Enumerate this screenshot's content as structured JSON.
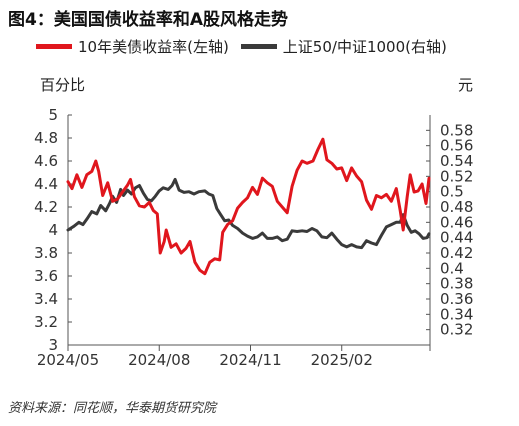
{
  "title": "图4：美国国债收益率和A股风格走势",
  "source": "资料来源：同花顺，华泰期货研究院",
  "colors": {
    "series1": "#e0161d",
    "series2": "#3a3a3a",
    "axis": "#555555",
    "text": "#333333"
  },
  "chart_data": {
    "type": "line",
    "legend_position": "top",
    "grid": false,
    "x_axis": {
      "type": "date",
      "range": [
        "2024-05-01",
        "2025-05-01"
      ],
      "tick_labels": [
        "2024/05",
        "2024/08",
        "2024/11",
        "2025/02"
      ]
    },
    "y_left": {
      "label": "百分比",
      "range": [
        3.0,
        5.0
      ],
      "tick_labels": [
        "3",
        "3.2",
        "3.4",
        "3.6",
        "3.8",
        "4",
        "4.2",
        "4.4",
        "4.6",
        "4.8",
        "5"
      ]
    },
    "y_right": {
      "label": "元",
      "range": [
        0.3,
        0.6
      ],
      "tick_labels": [
        "0.32",
        "0.34",
        "0.36",
        "0.38",
        "0.4",
        "0.42",
        "0.44",
        "0.46",
        "0.48",
        "0.5",
        "0.52",
        "0.54",
        "0.56",
        "0.58"
      ]
    },
    "series": [
      {
        "name": "10年美债收益率(左轴)",
        "axis": "left",
        "points": [
          [
            "2024-05-01",
            4.42
          ],
          [
            "2024-05-05",
            4.36
          ],
          [
            "2024-05-10",
            4.48
          ],
          [
            "2024-05-15",
            4.37
          ],
          [
            "2024-05-20",
            4.48
          ],
          [
            "2024-05-25",
            4.51
          ],
          [
            "2024-05-29",
            4.6
          ],
          [
            "2024-06-01",
            4.51
          ],
          [
            "2024-06-05",
            4.3
          ],
          [
            "2024-06-10",
            4.41
          ],
          [
            "2024-06-15",
            4.25
          ],
          [
            "2024-06-20",
            4.27
          ],
          [
            "2024-06-25",
            4.33
          ],
          [
            "2024-06-30",
            4.39
          ],
          [
            "2024-07-03",
            4.44
          ],
          [
            "2024-07-07",
            4.29
          ],
          [
            "2024-07-12",
            4.21
          ],
          [
            "2024-07-17",
            4.2
          ],
          [
            "2024-07-22",
            4.24
          ],
          [
            "2024-07-26",
            4.17
          ],
          [
            "2024-07-30",
            4.14
          ],
          [
            "2024-08-02",
            3.8
          ],
          [
            "2024-08-06",
            3.9
          ],
          [
            "2024-08-08",
            4.0
          ],
          [
            "2024-08-13",
            3.85
          ],
          [
            "2024-08-18",
            3.88
          ],
          [
            "2024-08-23",
            3.8
          ],
          [
            "2024-08-28",
            3.84
          ],
          [
            "2024-09-01",
            3.9
          ],
          [
            "2024-09-06",
            3.72
          ],
          [
            "2024-09-11",
            3.65
          ],
          [
            "2024-09-16",
            3.62
          ],
          [
            "2024-09-21",
            3.72
          ],
          [
            "2024-09-26",
            3.75
          ],
          [
            "2024-10-01",
            3.74
          ],
          [
            "2024-10-04",
            3.98
          ],
          [
            "2024-10-09",
            4.05
          ],
          [
            "2024-10-14",
            4.08
          ],
          [
            "2024-10-19",
            4.19
          ],
          [
            "2024-10-24",
            4.24
          ],
          [
            "2024-10-29",
            4.28
          ],
          [
            "2024-11-03",
            4.37
          ],
          [
            "2024-11-08",
            4.31
          ],
          [
            "2024-11-13",
            4.45
          ],
          [
            "2024-11-18",
            4.41
          ],
          [
            "2024-11-23",
            4.38
          ],
          [
            "2024-11-28",
            4.25
          ],
          [
            "2024-12-03",
            4.2
          ],
          [
            "2024-12-08",
            4.15
          ],
          [
            "2024-12-13",
            4.38
          ],
          [
            "2024-12-18",
            4.52
          ],
          [
            "2024-12-23",
            4.6
          ],
          [
            "2024-12-28",
            4.58
          ],
          [
            "2025-01-03",
            4.6
          ],
          [
            "2025-01-08",
            4.7
          ],
          [
            "2025-01-13",
            4.79
          ],
          [
            "2025-01-17",
            4.61
          ],
          [
            "2025-01-22",
            4.58
          ],
          [
            "2025-01-27",
            4.53
          ],
          [
            "2025-02-01",
            4.54
          ],
          [
            "2025-02-06",
            4.43
          ],
          [
            "2025-02-11",
            4.54
          ],
          [
            "2025-02-16",
            4.47
          ],
          [
            "2025-02-21",
            4.42
          ],
          [
            "2025-02-26",
            4.26
          ],
          [
            "2025-03-03",
            4.18
          ],
          [
            "2025-03-08",
            4.3
          ],
          [
            "2025-03-13",
            4.28
          ],
          [
            "2025-03-18",
            4.31
          ],
          [
            "2025-03-23",
            4.25
          ],
          [
            "2025-03-28",
            4.36
          ],
          [
            "2025-04-01",
            4.17
          ],
          [
            "2025-04-04",
            4.0
          ],
          [
            "2025-04-08",
            4.29
          ],
          [
            "2025-04-11",
            4.48
          ],
          [
            "2025-04-15",
            4.33
          ],
          [
            "2025-04-19",
            4.34
          ],
          [
            "2025-04-23",
            4.4
          ],
          [
            "2025-04-27",
            4.23
          ],
          [
            "2025-04-30",
            4.45
          ]
        ]
      },
      {
        "name": "上证50/中证1000(右轴)",
        "axis": "right",
        "points": [
          [
            "2024-05-01",
            0.45
          ],
          [
            "2024-05-07",
            0.455
          ],
          [
            "2024-05-12",
            0.46
          ],
          [
            "2024-05-16",
            0.457
          ],
          [
            "2024-05-21",
            0.466
          ],
          [
            "2024-05-25",
            0.474
          ],
          [
            "2024-05-30",
            0.471
          ],
          [
            "2024-06-03",
            0.482
          ],
          [
            "2024-06-08",
            0.475
          ],
          [
            "2024-06-12",
            0.485
          ],
          [
            "2024-06-15",
            0.494
          ],
          [
            "2024-06-19",
            0.486
          ],
          [
            "2024-06-23",
            0.503
          ],
          [
            "2024-06-26",
            0.495
          ],
          [
            "2024-06-30",
            0.502
          ],
          [
            "2024-07-04",
            0.497
          ],
          [
            "2024-07-08",
            0.505
          ],
          [
            "2024-07-12",
            0.508
          ],
          [
            "2024-07-16",
            0.498
          ],
          [
            "2024-07-20",
            0.49
          ],
          [
            "2024-07-24",
            0.488
          ],
          [
            "2024-07-28",
            0.494
          ],
          [
            "2024-08-01",
            0.501
          ],
          [
            "2024-08-05",
            0.505
          ],
          [
            "2024-08-10",
            0.503
          ],
          [
            "2024-08-14",
            0.508
          ],
          [
            "2024-08-17",
            0.516
          ],
          [
            "2024-08-21",
            0.502
          ],
          [
            "2024-08-26",
            0.499
          ],
          [
            "2024-08-31",
            0.5
          ],
          [
            "2024-09-05",
            0.497
          ],
          [
            "2024-09-10",
            0.5
          ],
          [
            "2024-09-16",
            0.501
          ],
          [
            "2024-09-20",
            0.497
          ],
          [
            "2024-09-24",
            0.495
          ],
          [
            "2024-09-28",
            0.478
          ],
          [
            "2024-10-02",
            0.47
          ],
          [
            "2024-10-06",
            0.462
          ],
          [
            "2024-10-10",
            0.463
          ],
          [
            "2024-10-14",
            0.456
          ],
          [
            "2024-10-19",
            0.452
          ],
          [
            "2024-10-24",
            0.446
          ],
          [
            "2024-10-29",
            0.442
          ],
          [
            "2024-11-03",
            0.439
          ],
          [
            "2024-11-08",
            0.441
          ],
          [
            "2024-11-13",
            0.446
          ],
          [
            "2024-11-18",
            0.439
          ],
          [
            "2024-11-23",
            0.439
          ],
          [
            "2024-11-28",
            0.441
          ],
          [
            "2024-12-03",
            0.436
          ],
          [
            "2024-12-08",
            0.438
          ],
          [
            "2024-12-13",
            0.449
          ],
          [
            "2024-12-18",
            0.448
          ],
          [
            "2024-12-23",
            0.449
          ],
          [
            "2024-12-28",
            0.448
          ],
          [
            "2025-01-02",
            0.452
          ],
          [
            "2025-01-07",
            0.449
          ],
          [
            "2025-01-12",
            0.441
          ],
          [
            "2025-01-17",
            0.44
          ],
          [
            "2025-01-22",
            0.446
          ],
          [
            "2025-01-27",
            0.438
          ],
          [
            "2025-02-01",
            0.431
          ],
          [
            "2025-02-06",
            0.428
          ],
          [
            "2025-02-11",
            0.431
          ],
          [
            "2025-02-16",
            0.428
          ],
          [
            "2025-02-21",
            0.427
          ],
          [
            "2025-02-26",
            0.436
          ],
          [
            "2025-03-03",
            0.433
          ],
          [
            "2025-03-08",
            0.431
          ],
          [
            "2025-03-13",
            0.443
          ],
          [
            "2025-03-18",
            0.454
          ],
          [
            "2025-03-23",
            0.457
          ],
          [
            "2025-03-28",
            0.46
          ],
          [
            "2025-04-01",
            0.46
          ],
          [
            "2025-04-04",
            0.47
          ],
          [
            "2025-04-08",
            0.456
          ],
          [
            "2025-04-12",
            0.447
          ],
          [
            "2025-04-16",
            0.449
          ],
          [
            "2025-04-20",
            0.445
          ],
          [
            "2025-04-24",
            0.439
          ],
          [
            "2025-04-28",
            0.44
          ],
          [
            "2025-04-30",
            0.445
          ]
        ]
      }
    ]
  }
}
